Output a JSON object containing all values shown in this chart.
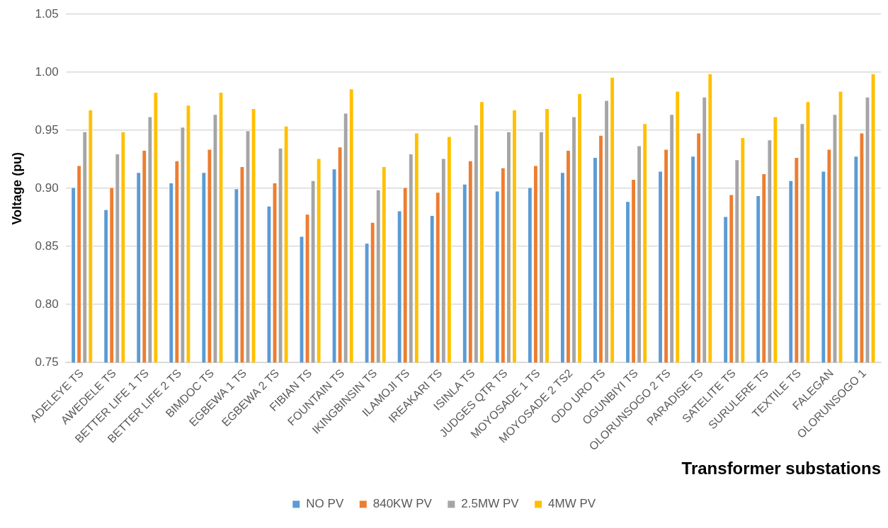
{
  "chart_data": {
    "type": "bar",
    "xlabel": "Transformer substations",
    "ylabel": "Voltage (pu)",
    "categories": [
      "ADELEYE TS",
      "AWEDELE TS",
      "BETTER LIFE 1 TS",
      "BETTER LIFE 2 TS",
      "BIMDOC TS",
      "EGBEWA 1 TS",
      "EGBEWA 2 TS",
      "FIBIAN TS",
      "FOUNTAIN TS",
      "IKINGBINSIN TS",
      "ILAMOJI TS",
      "IREAKARI TS",
      "ISINLA TS",
      "JUDGES QTR TS",
      "MOYOSADE 1 TS",
      "MOYOSADE 2 TS2",
      "ODO URO TS",
      "OGUNBIYI TS",
      "OLORUNSOGO 2 TS",
      "PARADISE TS",
      "SATELITE TS",
      "SURULERE TS",
      "TEXTILE TS",
      "FALEGAN",
      "OLORUNSOGO 1"
    ],
    "series": [
      {
        "name": "NO PV",
        "color": "#5b9bd5",
        "values": [
          0.901,
          0.882,
          0.914,
          0.905,
          0.914,
          0.9,
          0.885,
          0.859,
          0.917,
          0.853,
          0.881,
          0.877,
          0.904,
          0.898,
          0.901,
          0.914,
          0.927,
          0.889,
          0.915,
          0.928,
          0.876,
          0.894,
          0.907,
          0.915,
          0.928
        ]
      },
      {
        "name": "840KW PV",
        "color": "#ed7d31",
        "values": [
          0.92,
          0.901,
          0.933,
          0.924,
          0.934,
          0.919,
          0.905,
          0.878,
          0.936,
          0.871,
          0.901,
          0.897,
          0.924,
          0.918,
          0.92,
          0.933,
          0.946,
          0.908,
          0.934,
          0.948,
          0.895,
          0.913,
          0.927,
          0.934,
          0.948
        ]
      },
      {
        "name": "2.5MW PV",
        "color": "#a5a5a5",
        "values": [
          0.949,
          0.93,
          0.962,
          0.953,
          0.964,
          0.95,
          0.935,
          0.907,
          0.965,
          0.899,
          0.93,
          0.926,
          0.955,
          0.949,
          0.949,
          0.962,
          0.976,
          0.937,
          0.964,
          0.979,
          0.925,
          0.942,
          0.956,
          0.964,
          0.979
        ]
      },
      {
        "name": "4MW PV",
        "color": "#ffc000",
        "values": [
          0.968,
          0.949,
          0.983,
          0.972,
          0.983,
          0.969,
          0.954,
          0.926,
          0.986,
          0.919,
          0.948,
          0.945,
          0.975,
          0.968,
          0.969,
          0.982,
          0.996,
          0.956,
          0.984,
          0.999,
          0.944,
          0.962,
          0.975,
          0.984,
          0.999
        ]
      }
    ],
    "ylim": [
      0.75,
      1.05
    ],
    "yticks": [
      {
        "value": 0.75,
        "label": "0.75"
      },
      {
        "value": 0.8,
        "label": "0.80"
      },
      {
        "value": 0.85,
        "label": "0.85"
      },
      {
        "value": 0.9,
        "label": "0.90"
      },
      {
        "value": 0.95,
        "label": "0.95"
      },
      {
        "value": 1.0,
        "label": "1.00"
      },
      {
        "value": 1.05,
        "label": "1.05"
      }
    ],
    "grid": "y",
    "legend": "bottom"
  }
}
